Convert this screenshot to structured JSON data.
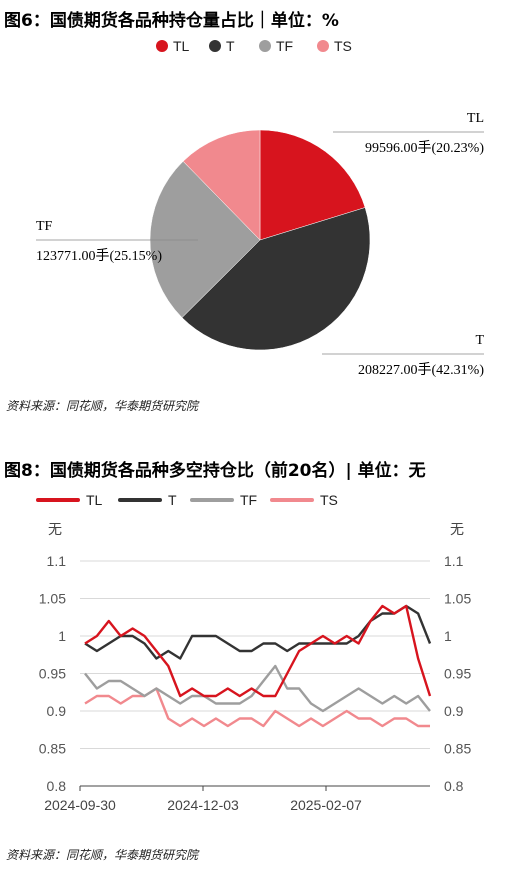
{
  "figure6": {
    "title": "图6：国债期货各品种持仓量占比｜单位：%",
    "source": "资料来源：同花顺，华泰期货研究院",
    "legend": [
      "TL",
      "T",
      "TF",
      "TS"
    ],
    "colors": {
      "TL": "#d7141e",
      "T": "#333333",
      "TF": "#9e9e9e",
      "TS": "#f1898e"
    }
  },
  "figure8": {
    "title": "图8：国债期货各品种多空持仓比（前20名）| 单位：无",
    "source": "资料来源：同花顺，华泰期货研究院",
    "legend": [
      "TL",
      "T",
      "TF",
      "TS"
    ],
    "colors": {
      "TL": "#d7141e",
      "T": "#333333",
      "TF": "#9e9e9e",
      "TS": "#f1898e"
    }
  },
  "chart_data": [
    {
      "type": "pie",
      "title": "图6：国债期货各品种持仓量占比｜单位：%",
      "slices": [
        {
          "name": "TL",
          "value": 99596.0,
          "percent": 20.23,
          "label": "99596.00手(20.23%)"
        },
        {
          "name": "T",
          "value": 208227.0,
          "percent": 42.31,
          "label": "208227.00手(42.31%)"
        },
        {
          "name": "TF",
          "value": 123771.0,
          "percent": 25.15,
          "label": "123771.00手(25.15%)"
        },
        {
          "name": "TS",
          "value": 60576.0,
          "percent": 12.31
        }
      ]
    },
    {
      "type": "line",
      "title": "图8：国债期货各品种多空持仓比（前20名）| 单位：无",
      "ylabel_left": "无",
      "ylabel_right": "无",
      "ylim": [
        0.8,
        1.1
      ],
      "yticks": [
        "1.1",
        "1.05",
        "1",
        "0.95",
        "0.9",
        "0.85",
        "0.8"
      ],
      "xticks": [
        "2024-09-30",
        "2024-12-03",
        "2025-02-07"
      ],
      "grid": true,
      "legend": "top-left",
      "n_points": 30,
      "series": [
        {
          "name": "TL",
          "values": [
            0.99,
            1.0,
            1.02,
            1.0,
            1.01,
            1.0,
            0.98,
            0.96,
            0.92,
            0.93,
            0.92,
            0.92,
            0.93,
            0.92,
            0.93,
            0.92,
            0.92,
            0.95,
            0.98,
            0.99,
            1.0,
            0.99,
            1.0,
            0.99,
            1.02,
            1.04,
            1.03,
            1.04,
            0.97,
            0.92
          ]
        },
        {
          "name": "T",
          "values": [
            0.99,
            0.98,
            0.99,
            1.0,
            1.0,
            0.99,
            0.97,
            0.98,
            0.97,
            1.0,
            1.0,
            1.0,
            0.99,
            0.98,
            0.98,
            0.99,
            0.99,
            0.98,
            0.99,
            0.99,
            0.99,
            0.99,
            0.99,
            1.0,
            1.02,
            1.03,
            1.03,
            1.04,
            1.03,
            0.99
          ]
        },
        {
          "name": "TF",
          "values": [
            0.95,
            0.93,
            0.94,
            0.94,
            0.93,
            0.92,
            0.93,
            0.92,
            0.91,
            0.92,
            0.92,
            0.91,
            0.91,
            0.91,
            0.92,
            0.94,
            0.96,
            0.93,
            0.93,
            0.91,
            0.9,
            0.91,
            0.92,
            0.93,
            0.92,
            0.91,
            0.92,
            0.91,
            0.92,
            0.9
          ]
        },
        {
          "name": "TS",
          "values": [
            0.91,
            0.92,
            0.92,
            0.91,
            0.92,
            0.92,
            0.93,
            0.89,
            0.88,
            0.89,
            0.88,
            0.89,
            0.88,
            0.89,
            0.89,
            0.88,
            0.9,
            0.89,
            0.88,
            0.89,
            0.88,
            0.89,
            0.9,
            0.89,
            0.89,
            0.88,
            0.89,
            0.89,
            0.88,
            0.88
          ]
        }
      ]
    }
  ]
}
